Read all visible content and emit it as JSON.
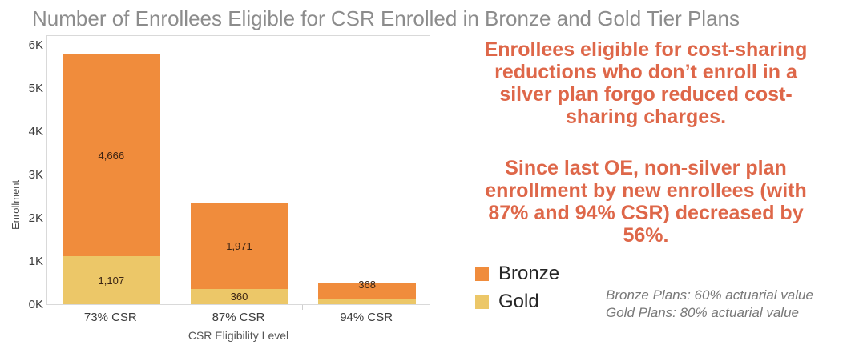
{
  "chart_data": {
    "type": "bar",
    "stacked": true,
    "title": "Number of Enrollees Eligible for CSR Enrolled in Bronze and Gold Tier Plans",
    "title_color": "#8C8C8C",
    "xlabel": "CSR Eligibility Level",
    "ylabel": "Enrollment",
    "categories": [
      "73% CSR",
      "87% CSR",
      "94% CSR"
    ],
    "series": [
      {
        "name": "Gold",
        "color": "#ECC768",
        "values": [
          1107,
          360,
          138
        ],
        "labels": [
          "1,107",
          "360",
          "138"
        ]
      },
      {
        "name": "Bronze",
        "color": "#F08C3C",
        "values": [
          4666,
          1971,
          368
        ],
        "labels": [
          "4,666",
          "1,971",
          "368"
        ]
      }
    ],
    "ylim": [
      0,
      6000
    ],
    "yticks": [
      {
        "value": 0,
        "label": "0K"
      },
      {
        "value": 1000,
        "label": "1K"
      },
      {
        "value": 2000,
        "label": "2K"
      },
      {
        "value": 3000,
        "label": "3K"
      },
      {
        "value": 4000,
        "label": "4K"
      },
      {
        "value": 5000,
        "label": "5K"
      },
      {
        "value": 6000,
        "label": "6K"
      }
    ],
    "grid": false,
    "legend_position": "right"
  },
  "right_panel": {
    "accent_color": "#DE6749",
    "paragraph1_lines": [
      "Enrollees eligible for cost-sharing",
      "reductions who don’t enroll in a",
      "silver plan forgo reduced cost-",
      "sharing charges."
    ],
    "paragraph2_lines": [
      "Since last OE, non-silver plan",
      "enrollment by new enrollees (with",
      "87% and 94% CSR) decreased by",
      "56%."
    ],
    "legend": [
      {
        "label": "Bronze",
        "color": "#F08C3C"
      },
      {
        "label": "Gold",
        "color": "#ECC768"
      }
    ],
    "notes": [
      "Bronze Plans: 60% actuarial value",
      "Gold Plans: 80% actuarial value"
    ]
  }
}
